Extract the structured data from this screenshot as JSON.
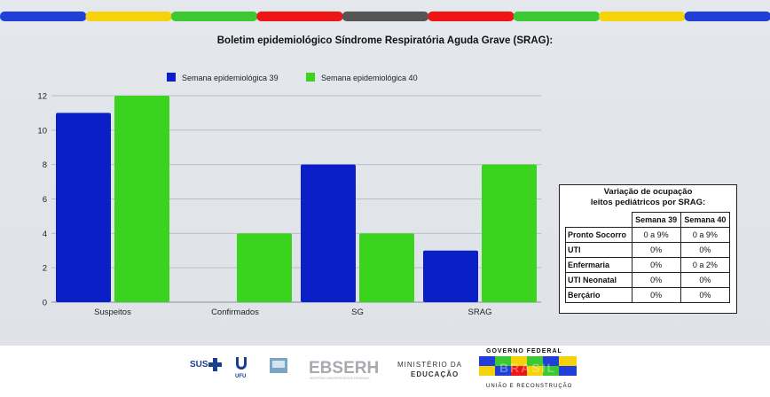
{
  "stripe_colors": [
    "#1f3fd6",
    "#f5d20a",
    "#3cc832",
    "#ee1515",
    "#555555",
    "#ee1515",
    "#3cc832",
    "#f5d20a",
    "#1f3fd6"
  ],
  "chart_data": {
    "type": "bar",
    "title": "Boletim epidemiológico Síndrome Respiratória Aguda Grave (SRAG):",
    "categories": [
      "Suspeitos",
      "Confirmados",
      "SG",
      "SRAG"
    ],
    "series": [
      {
        "name": "Semana epidemiológica 39",
        "color": "#0a1fc8",
        "values": [
          11,
          0,
          8,
          3
        ]
      },
      {
        "name": "Semana epidemiológica 40",
        "color": "#3ad41f",
        "values": [
          12,
          4,
          4,
          8
        ]
      }
    ],
    "ylim": [
      0,
      12
    ],
    "yticks": [
      0,
      2,
      4,
      6,
      8,
      10,
      12
    ],
    "grid": true,
    "legend_position": "top"
  },
  "occupancy_table": {
    "title_line1": "Variação de ocupação",
    "title_line2": "leitos pediátricos por SRAG:",
    "headers": [
      "Semana 39",
      "Semana 40"
    ],
    "rows": [
      {
        "label": "Pronto Socorro",
        "w39": "0 a 9%",
        "w40": "0 a 9%"
      },
      {
        "label": "UTI",
        "w39": "0%",
        "w40": "0%"
      },
      {
        "label": "Enfermaria",
        "w39": "0%",
        "w40": "0 a 2%"
      },
      {
        "label": "UTI Neonatal",
        "w39": "0%",
        "w40": "0%"
      },
      {
        "label": "Berçário",
        "w39": "0%",
        "w40": "0%"
      }
    ]
  },
  "footer": {
    "sus": "SUS",
    "ufu": "UFU",
    "ebserh": "EBSERH",
    "ebserh_sub": "HOSPITAIS UNIVERSITÁRIOS FEDERAIS",
    "ministerio_line1": "MINISTÉRIO DA",
    "ministerio_line2": "EDUCAÇÃO",
    "gov_top": "GOVERNO FEDERAL",
    "brasil": "BRASIL",
    "gov_bottom": "UNIÃO E RECONSTRUÇÃO"
  }
}
